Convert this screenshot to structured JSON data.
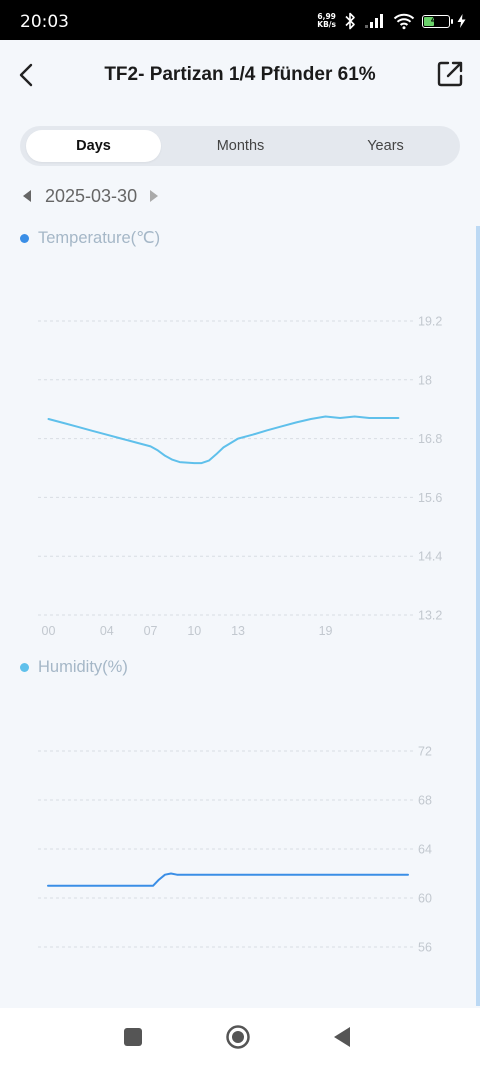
{
  "status_bar": {
    "time": "20:03",
    "net_speed_value": "6,99",
    "net_speed_unit": "KB/s",
    "battery_level": "44",
    "battery_fraction": 0.44
  },
  "header": {
    "title": "TF2- Partizan 1/4 Pfünder 61%",
    "back_icon": "chevron-left-icon",
    "share_icon": "external-share-icon"
  },
  "tabs": [
    {
      "label": "Days",
      "active": true
    },
    {
      "label": "Months",
      "active": false
    },
    {
      "label": "Years",
      "active": false
    }
  ],
  "date_nav": {
    "date": "2025-03-30"
  },
  "colors": {
    "temperature": "#5fc0eb",
    "temperature_dot": "#3a8ee6",
    "humidity": "#3a8ee6",
    "humidity_dot": "#5fc0eb",
    "grid": "#d8dde3",
    "tick": "#c2c8cf"
  },
  "chart_data": [
    {
      "type": "line",
      "title": "Temperature(℃)",
      "x_tick_labels": [
        "00",
        "04",
        "07",
        "10",
        "13",
        "19"
      ],
      "y_tick_labels": [
        "19.2",
        "18",
        "16.8",
        "15.6",
        "14.4",
        "13.2"
      ],
      "ylim": [
        13.2,
        19.2
      ],
      "xlim": [
        0,
        24
      ],
      "grid": true,
      "series": [
        {
          "x": [
            0,
            1,
            2,
            3,
            4,
            5,
            6,
            7,
            7.5,
            8,
            8.5,
            9,
            10,
            10.5,
            11,
            11.5,
            12,
            13,
            14,
            15,
            16,
            17,
            18,
            19,
            20,
            21,
            22,
            23,
            24
          ],
          "values": [
            17.2,
            17.12,
            17.04,
            16.96,
            16.88,
            16.8,
            16.72,
            16.64,
            16.56,
            16.45,
            16.37,
            16.32,
            16.3,
            16.3,
            16.35,
            16.48,
            16.62,
            16.8,
            16.88,
            16.97,
            17.05,
            17.13,
            17.2,
            17.25,
            17.22,
            17.25,
            17.22,
            17.22,
            17.22
          ]
        }
      ]
    },
    {
      "type": "line",
      "title": "Humidity(%)",
      "x_tick_labels": [],
      "y_tick_labels": [
        "72",
        "68",
        "64",
        "60",
        "56"
      ],
      "ylim": [
        56,
        72
      ],
      "grid": true,
      "series": [
        {
          "x": [
            0,
            1,
            2,
            3,
            4,
            5,
            6,
            7,
            7.4,
            7.8,
            8.2,
            8.6,
            9,
            10,
            12,
            14,
            16,
            18,
            20,
            22,
            24
          ],
          "values": [
            61.0,
            61.0,
            61.0,
            61.0,
            61.0,
            61.0,
            61.0,
            61.0,
            61.5,
            61.9,
            62.0,
            61.9,
            61.9,
            61.9,
            61.9,
            61.9,
            61.9,
            61.9,
            61.9,
            61.9,
            61.9
          ]
        }
      ]
    }
  ]
}
